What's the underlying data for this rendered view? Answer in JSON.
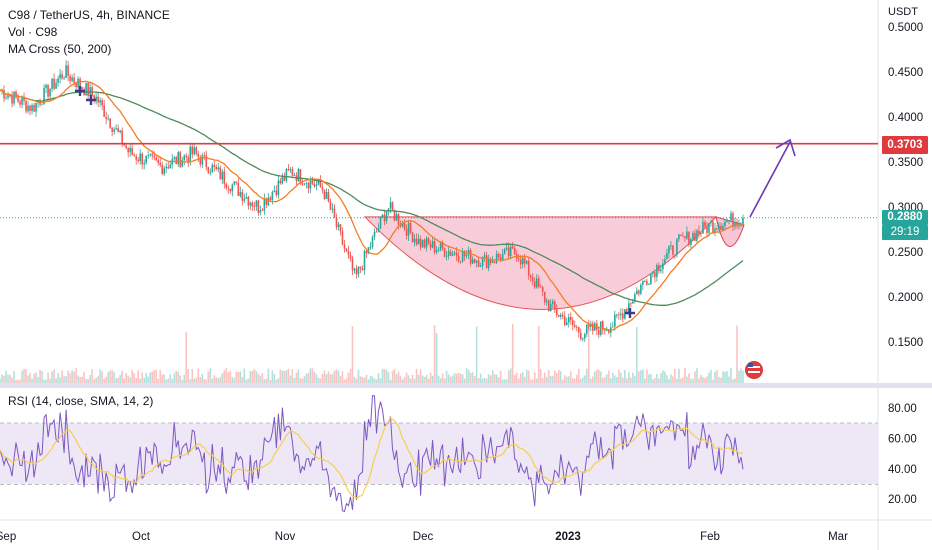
{
  "header": {
    "symbol_line": "C98 / TetherUS, 4h, BINANCE",
    "vol_line": "Vol · C98",
    "ma_line": "MA Cross (50, 200)"
  },
  "price_axis": {
    "unit_label": "USDT",
    "ticks": [
      "0.5000",
      "0.4500",
      "0.4000",
      "0.3500",
      "0.3000",
      "0.2500",
      "0.2000",
      "0.1500"
    ],
    "current_price": "0.2880",
    "countdown": "29:19",
    "resistance_price": "0.3703"
  },
  "rsi_panel": {
    "label": "RSI (14, close, SMA, 14, 2)",
    "ticks": [
      "80.00",
      "60.00",
      "40.00",
      "20.00"
    ],
    "upper_band": 70,
    "lower_band": 30
  },
  "time_axis": {
    "labels": [
      "Sep",
      "Oct",
      "Nov",
      "Dec",
      "2023",
      "Feb",
      "Mar"
    ]
  },
  "colors": {
    "up": "#26a69a",
    "down": "#ef5350",
    "ma50": "#f57c22",
    "ma200": "#4f8a5b",
    "resistance": "#e03a3e",
    "cup_fill": "#f7c5d3",
    "arrow": "#6a3bb5",
    "rsi_line": "#7e57c2",
    "rsi_ma": "#f6d04d",
    "rsi_band": "#ede7f6"
  },
  "chart_data": {
    "type": "line",
    "subtype": "candlestick",
    "x": [
      "Sep",
      "Oct",
      "Nov",
      "Dec",
      "2023",
      "Feb",
      "Mar"
    ],
    "ylim": [
      0.11,
      0.51
    ],
    "price_path": [
      {
        "t": "Sep",
        "p": 0.43
      },
      {
        "t": "Sep",
        "p": 0.41
      },
      {
        "t": "Sep",
        "p": 0.45
      },
      {
        "t": "Sep",
        "p": 0.42
      },
      {
        "t": "Sep",
        "p": 0.36
      },
      {
        "t": "Oct",
        "p": 0.345
      },
      {
        "t": "Oct",
        "p": 0.36
      },
      {
        "t": "Oct",
        "p": 0.33
      },
      {
        "t": "Oct",
        "p": 0.3
      },
      {
        "t": "Nov",
        "p": 0.34
      },
      {
        "t": "Nov",
        "p": 0.32
      },
      {
        "t": "Nov",
        "p": 0.22
      },
      {
        "t": "Nov",
        "p": 0.3
      },
      {
        "t": "Nov",
        "p": 0.26
      },
      {
        "t": "Dec",
        "p": 0.25
      },
      {
        "t": "Dec",
        "p": 0.24
      },
      {
        "t": "Dec",
        "p": 0.25
      },
      {
        "t": "Dec",
        "p": 0.19
      },
      {
        "t": "2023",
        "p": 0.16
      },
      {
        "t": "2023",
        "p": 0.17
      },
      {
        "t": "2023",
        "p": 0.22
      },
      {
        "t": "Feb",
        "p": 0.26
      },
      {
        "t": "Feb",
        "p": 0.28
      },
      {
        "t": "Feb",
        "p": 0.288
      }
    ],
    "ma50_label": "MA 50",
    "ma200_label": "MA 200",
    "resistance_level": 0.3703,
    "last_price": 0.288,
    "rsi_range": [
      10,
      90
    ]
  }
}
